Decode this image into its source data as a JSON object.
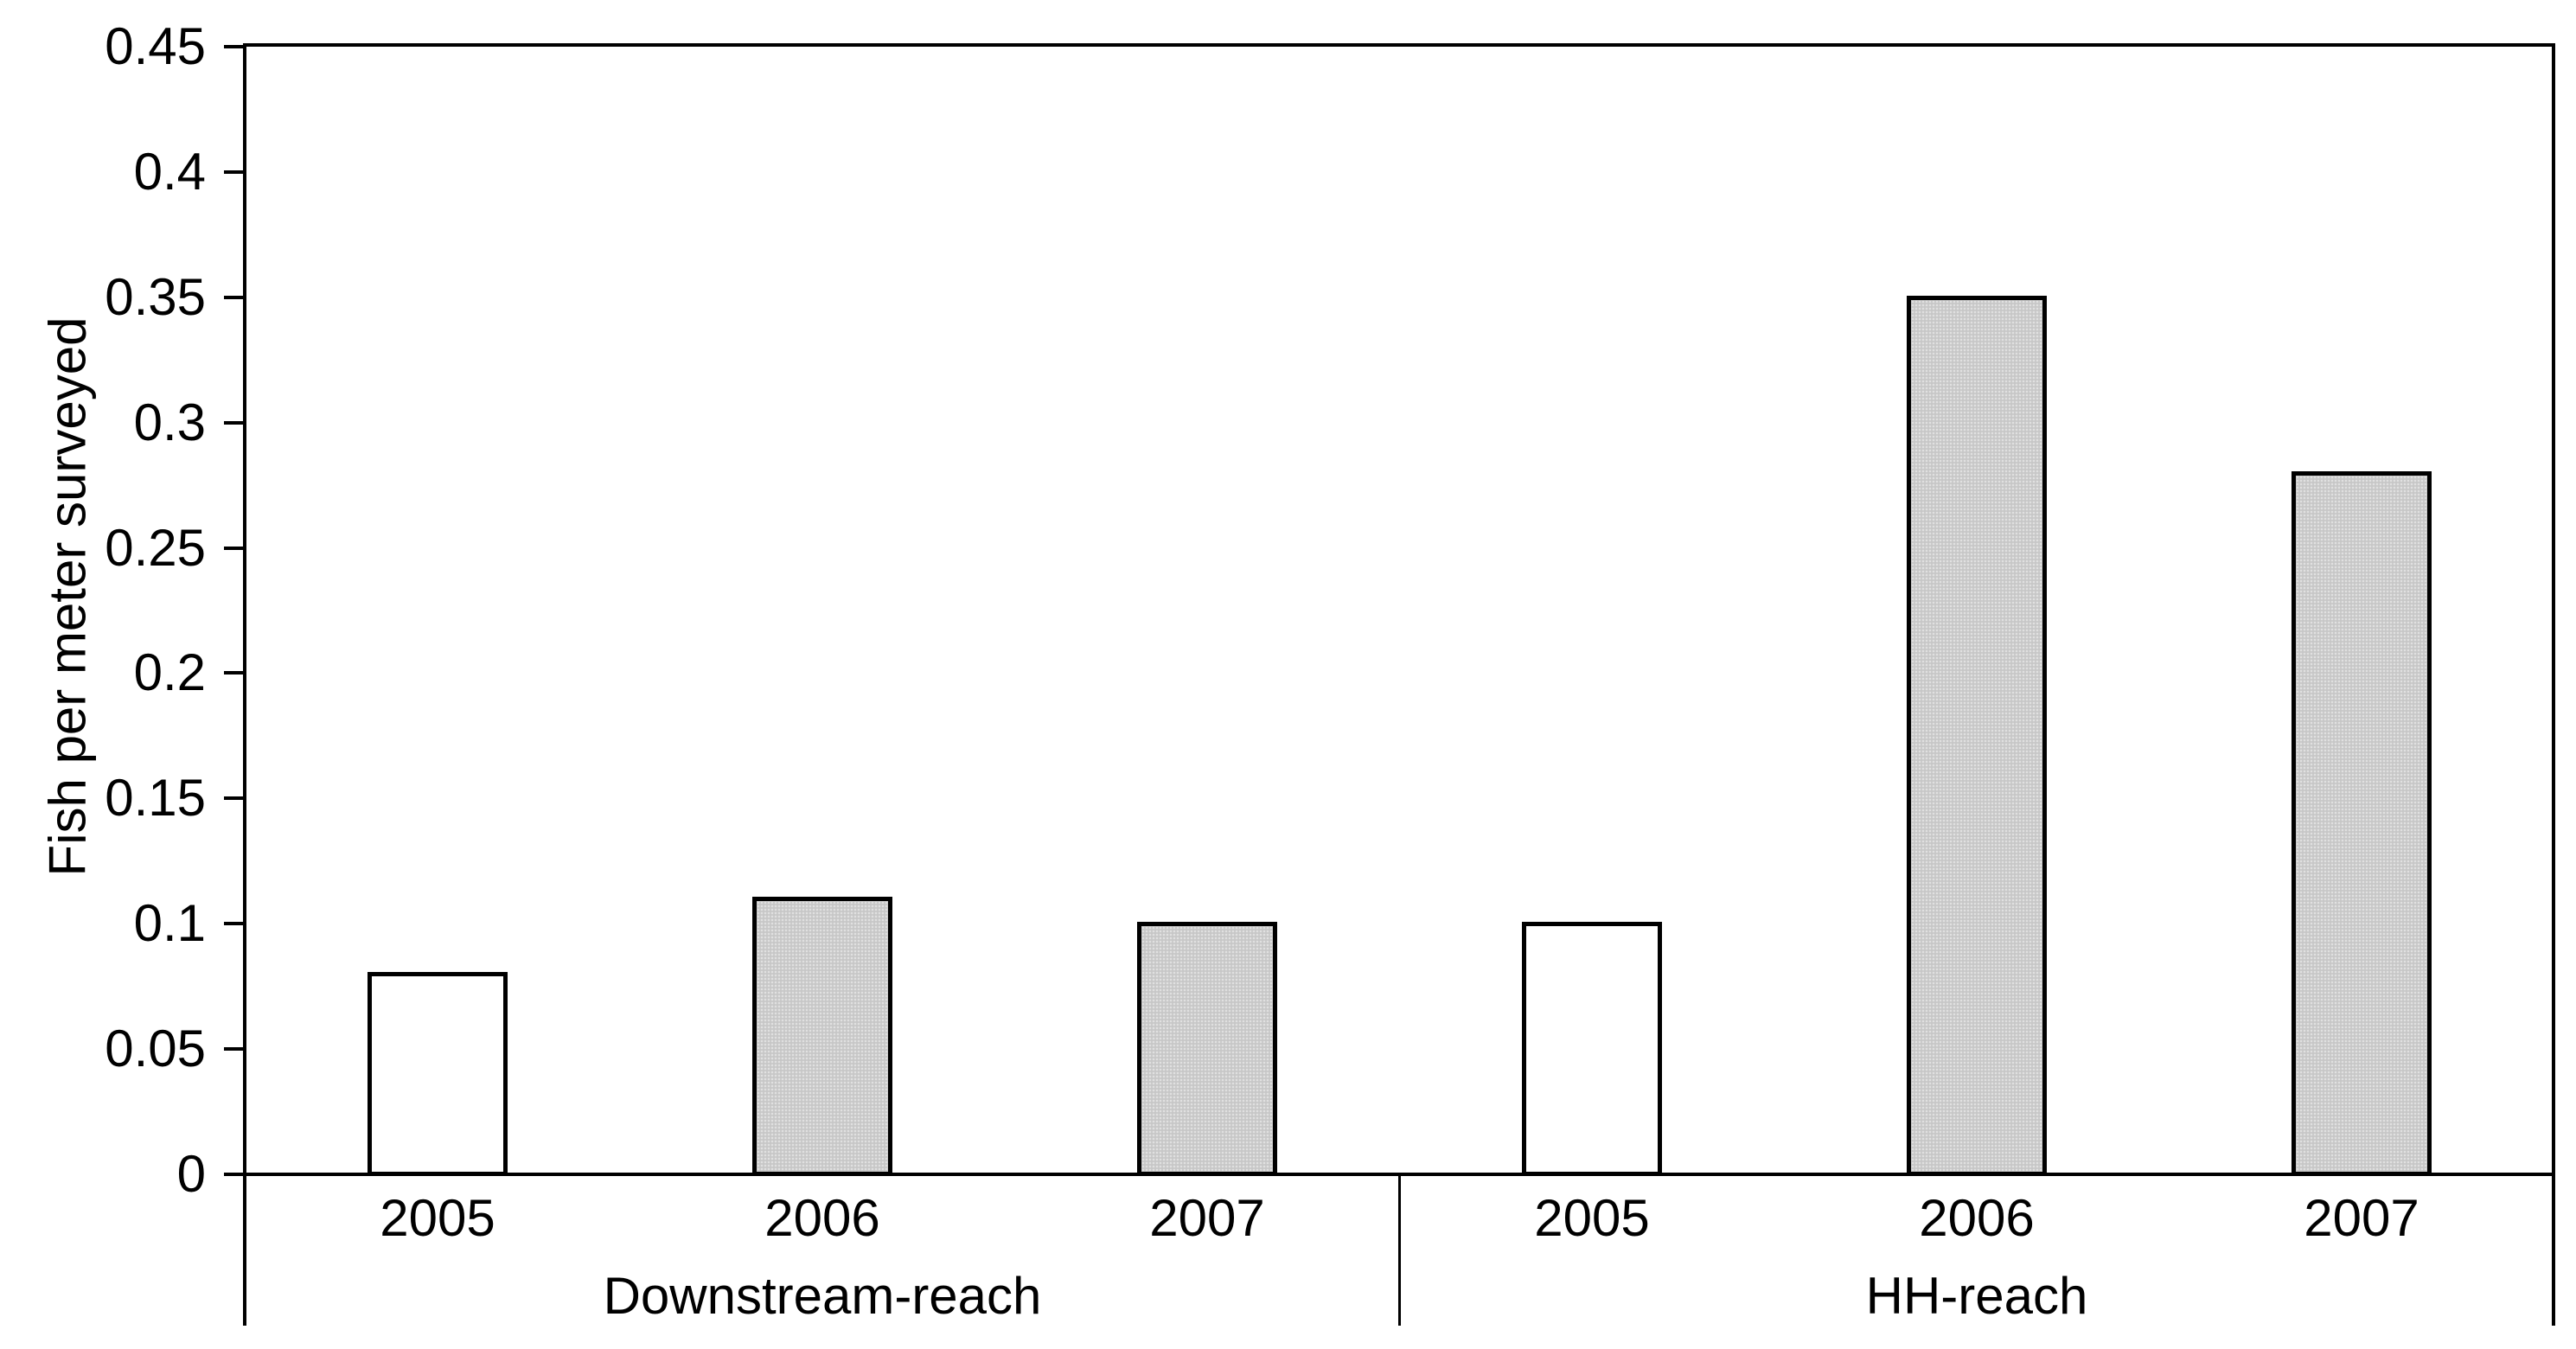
{
  "chart_data": {
    "type": "bar",
    "title": "",
    "ylabel": "Fish per meter surveyed",
    "xlabel": "",
    "ylim": [
      0,
      0.45
    ],
    "ytick_step": 0.05,
    "ytick_labels": [
      "0",
      "0.05",
      "0.1",
      "0.15",
      "0.2",
      "0.25",
      "0.3",
      "0.35",
      "0.4",
      "0.45"
    ],
    "grid": false,
    "legend": false,
    "groups": [
      {
        "label": "Downstream-reach",
        "categories": [
          "2005",
          "2006",
          "2007"
        ],
        "values": [
          0.08,
          0.11,
          0.1
        ],
        "fills": [
          "white",
          "dotted-gray",
          "dotted-gray"
        ]
      },
      {
        "label": "HH-reach",
        "categories": [
          "2005",
          "2006",
          "2007"
        ],
        "values": [
          0.1,
          0.35,
          0.28
        ],
        "fills": [
          "white",
          "dotted-gray",
          "dotted-gray"
        ]
      }
    ],
    "colors": {
      "bar_border": "#000000",
      "bar_fill_white": "#ffffff",
      "bar_fill_gray": "#c7c7c7",
      "bar_fill_gray_dot": "#e0e0e0",
      "axis": "#000000",
      "text": "#000000",
      "background": "#ffffff"
    }
  }
}
